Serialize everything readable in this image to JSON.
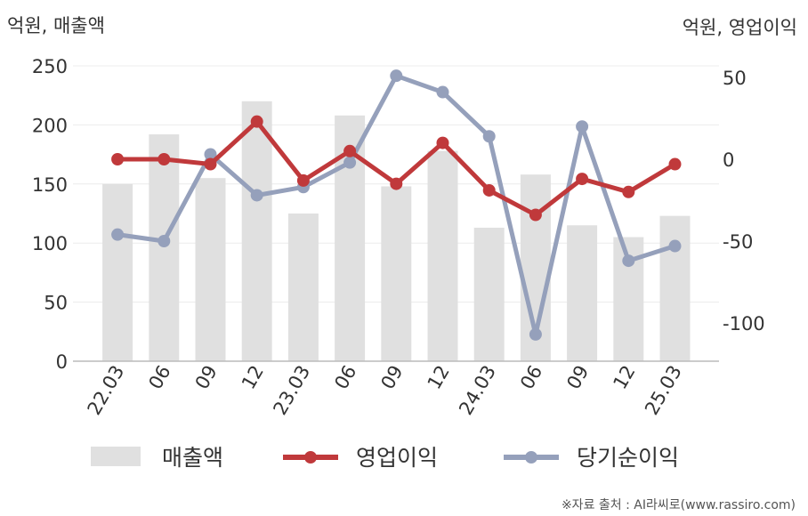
{
  "chart_data": {
    "type": "bar",
    "categories": [
      "22.03",
      "06",
      "09",
      "12",
      "23.03",
      "06",
      "09",
      "12",
      "24.03",
      "06",
      "09",
      "12",
      "25.03"
    ],
    "series": [
      {
        "name": "매출액",
        "type": "bar",
        "axis": "left",
        "color": "#e0e0e0",
        "values": [
          150,
          192,
          155,
          220,
          125,
          208,
          148,
          178,
          113,
          158,
          115,
          105,
          123
        ]
      },
      {
        "name": "영업이익",
        "type": "line",
        "axis": "right",
        "color": "#c0393b",
        "values": [
          0,
          0,
          -3,
          23,
          -13,
          5,
          -15,
          10,
          -19,
          -34,
          -12,
          -20,
          -3
        ]
      },
      {
        "name": "당기순이익",
        "type": "line",
        "axis": "right",
        "color": "#95a0bb",
        "values": [
          -46,
          -50,
          3,
          -22,
          -17,
          -2,
          51,
          41,
          14,
          -107,
          20,
          -62,
          -53
        ]
      }
    ],
    "left_axis": {
      "label": "억원, 매출액",
      "ticks": [
        "0",
        "50",
        "100",
        "150",
        "200",
        "250"
      ],
      "range": [
        0,
        250
      ]
    },
    "right_axis": {
      "label": "억원, 영업이익",
      "ticks": [
        "50",
        "0",
        "-50",
        "-100"
      ],
      "range": [
        -125,
        50
      ]
    },
    "grid": true,
    "legend_position": "bottom"
  },
  "source": "※자료 출처 : AI라씨로(www.rassiro.com)"
}
